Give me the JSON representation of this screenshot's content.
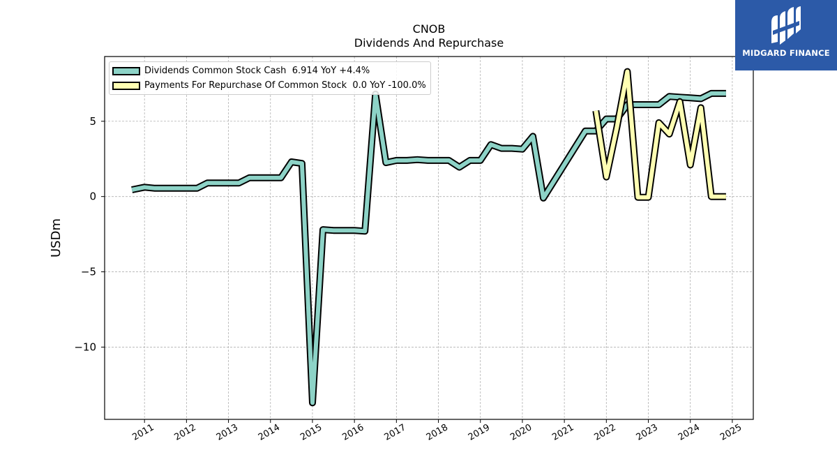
{
  "brand": {
    "name": "MIDGARD FINANCE",
    "color": "#2c5aa8"
  },
  "chart_data": {
    "type": "line",
    "title": "CNOB",
    "subtitle": "Dividends And Repurchase",
    "ylabel": "USDm",
    "xlabel": "",
    "x_ticks": [
      "2011",
      "2012",
      "2013",
      "2014",
      "2015",
      "2016",
      "2017",
      "2018",
      "2019",
      "2020",
      "2021",
      "2022",
      "2023",
      "2024",
      "2025"
    ],
    "y_ticks": [
      "−10",
      "−5",
      "0",
      "5"
    ],
    "y_tick_values": [
      -10,
      -5,
      0,
      5
    ],
    "ylim": [
      -14.8,
      9.3
    ],
    "xlim": [
      2010.05,
      2025.5
    ],
    "grid": true,
    "legend_position": "top-left",
    "series": [
      {
        "name": "Dividends Common Stock Cash",
        "legend_label": "Dividends Common Stock Cash  6.914 YoY +4.4%",
        "color": "#8dd3c7",
        "points": [
          [
            2010.7,
            0.45
          ],
          [
            2011.0,
            0.62
          ],
          [
            2011.25,
            0.55
          ],
          [
            2011.5,
            0.55
          ],
          [
            2011.75,
            0.55
          ],
          [
            2012.0,
            0.55
          ],
          [
            2012.25,
            0.55
          ],
          [
            2012.5,
            0.9
          ],
          [
            2012.75,
            0.9
          ],
          [
            2013.0,
            0.9
          ],
          [
            2013.25,
            0.9
          ],
          [
            2013.5,
            1.25
          ],
          [
            2013.75,
            1.25
          ],
          [
            2014.0,
            1.25
          ],
          [
            2014.25,
            1.25
          ],
          [
            2014.5,
            2.3
          ],
          [
            2014.75,
            2.2
          ],
          [
            2015.0,
            -13.7
          ],
          [
            2015.25,
            -2.2
          ],
          [
            2015.5,
            -2.25
          ],
          [
            2015.75,
            -2.25
          ],
          [
            2016.0,
            -2.25
          ],
          [
            2016.25,
            -2.3
          ],
          [
            2016.5,
            6.8
          ],
          [
            2016.75,
            2.25
          ],
          [
            2017.0,
            2.4
          ],
          [
            2017.25,
            2.4
          ],
          [
            2017.5,
            2.45
          ],
          [
            2017.75,
            2.4
          ],
          [
            2018.0,
            2.4
          ],
          [
            2018.25,
            2.4
          ],
          [
            2018.5,
            1.95
          ],
          [
            2018.75,
            2.4
          ],
          [
            2019.0,
            2.4
          ],
          [
            2019.25,
            3.45
          ],
          [
            2019.5,
            3.2
          ],
          [
            2019.75,
            3.2
          ],
          [
            2020.0,
            3.15
          ],
          [
            2020.25,
            4.0
          ],
          [
            2020.5,
            -0.1
          ],
          [
            2021.5,
            4.35
          ],
          [
            2021.75,
            4.35
          ],
          [
            2022.0,
            5.15
          ],
          [
            2022.25,
            5.15
          ],
          [
            2022.5,
            6.1
          ],
          [
            2022.75,
            6.1
          ],
          [
            2023.0,
            6.1
          ],
          [
            2023.25,
            6.1
          ],
          [
            2023.5,
            6.65
          ],
          [
            2023.75,
            6.6
          ],
          [
            2024.0,
            6.55
          ],
          [
            2024.25,
            6.5
          ],
          [
            2024.5,
            6.85
          ],
          [
            2024.75,
            6.85
          ],
          [
            2024.85,
            6.85
          ]
        ]
      },
      {
        "name": "Payments For Repurchase Of Common Stock",
        "legend_label": "Payments For Repurchase Of Common Stock  0.0 YoY -100.0%",
        "color": "#ffffb3",
        "points": [
          [
            2021.75,
            5.7
          ],
          [
            2022.0,
            1.3
          ],
          [
            2022.25,
            4.6
          ],
          [
            2022.5,
            8.3
          ],
          [
            2022.75,
            -0.05
          ],
          [
            2023.0,
            -0.05
          ],
          [
            2023.25,
            4.9
          ],
          [
            2023.5,
            4.15
          ],
          [
            2023.75,
            6.3
          ],
          [
            2024.0,
            2.1
          ],
          [
            2024.25,
            5.9
          ],
          [
            2024.5,
            0.0
          ],
          [
            2024.85,
            0.0
          ]
        ]
      }
    ]
  }
}
